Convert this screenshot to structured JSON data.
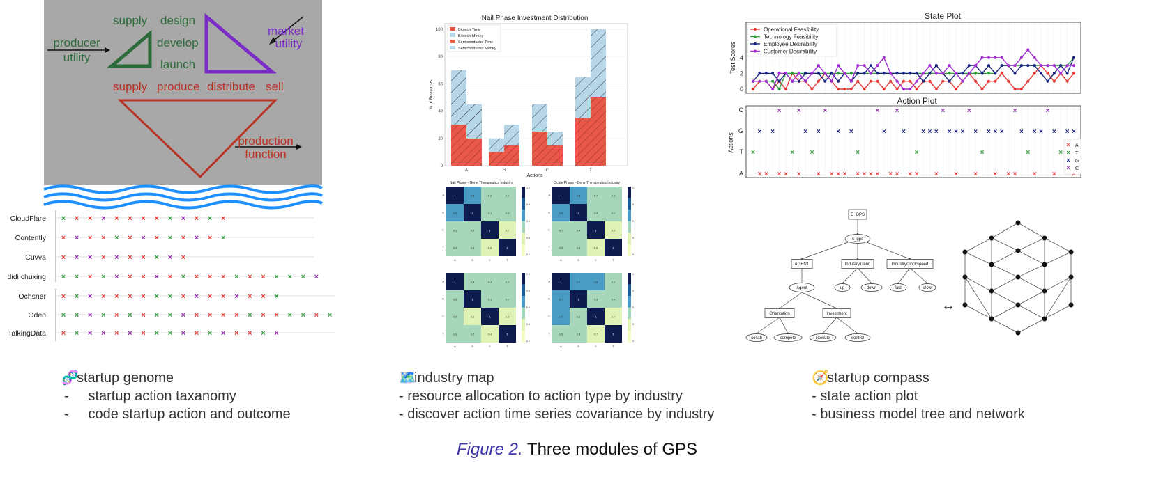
{
  "genome": {
    "top_words": [
      "supply",
      "design",
      "develop",
      "launch",
      "supply",
      "produce",
      "distribute",
      "sell"
    ],
    "producer": [
      "producer",
      "utility"
    ],
    "market": [
      "market",
      "utility"
    ],
    "production": [
      "production",
      "function"
    ],
    "companies": [
      "CloudFlare",
      "Contently",
      "Cuvva",
      "didi chuxing",
      "Ochsner",
      "Odeo",
      "TalkingData"
    ],
    "rows": [
      [
        "g",
        "r",
        "r",
        "p",
        "r",
        "r",
        "r",
        "r",
        "g",
        "p",
        "r",
        "g",
        "r"
      ],
      [
        "r",
        "p",
        "r",
        "r",
        "g",
        "r",
        "p",
        "r",
        "g",
        "r",
        "p",
        "r",
        "g"
      ],
      [
        "r",
        "p",
        "p",
        "r",
        "p",
        "r",
        "r",
        "g",
        "p",
        "r"
      ],
      [
        "g",
        "g",
        "r",
        "g",
        "p",
        "r",
        "r",
        "p",
        "r",
        "g",
        "r",
        "r",
        "r",
        "g",
        "r",
        "r",
        "g",
        "g",
        "g",
        "p"
      ],
      [
        "r",
        "g",
        "p",
        "r",
        "r",
        "r",
        "r",
        "g",
        "g",
        "r",
        "p",
        "r",
        "r",
        "p",
        "r",
        "r",
        "g"
      ],
      [
        "g",
        "g",
        "p",
        "g",
        "r",
        "g",
        "r",
        "g",
        "g",
        "p",
        "r",
        "r",
        "r",
        "r",
        "g",
        "r",
        "r",
        "g",
        "g",
        "r",
        "g"
      ],
      [
        "r",
        "g",
        "p",
        "p",
        "r",
        "p",
        "r",
        "g",
        "g",
        "p",
        "r",
        "g",
        "p",
        "r",
        "r",
        "g",
        "p"
      ]
    ]
  },
  "industry": {
    "bar": {
      "title": "Nail Phase Investment Distribution",
      "xlabel": "Actions",
      "ylabel": "% of Resources",
      "categories": [
        "A",
        "G",
        "C",
        "T"
      ],
      "legend": [
        "Biotech Time",
        "Biotech Money",
        "Semiconductor Time",
        "Semiconductor Money"
      ],
      "ticks": [
        "0",
        "20",
        "40",
        "60",
        "80",
        "100"
      ]
    },
    "heat_titles": [
      "Nail Phase - Gene Therapeutics Industry",
      "Scale Phase - Gene Therapeutics Industry"
    ],
    "heat_labels": [
      "A",
      "G",
      "C",
      "T"
    ]
  },
  "compass": {
    "state": {
      "title": "State Plot",
      "ylabel": "Test Scores",
      "yticks": [
        "0",
        "2",
        "4"
      ],
      "legend": [
        "Operational Feasibility",
        "Technology Feasibility",
        "Employee Desirability",
        "Customer Desirability"
      ]
    },
    "action": {
      "title": "Action Plot",
      "ylabel": "Actions",
      "rows": [
        "C",
        "G",
        "T",
        "A"
      ],
      "legend": [
        "A",
        "T",
        "G",
        "C"
      ]
    },
    "tree": {
      "root": "E_GPS",
      "sub": "c_gps",
      "l2": [
        "AGENT",
        "IndustryTrend",
        "IndustryClockspeed"
      ],
      "agent": "Agent",
      "trend": [
        "up",
        "down"
      ],
      "clock": [
        "fast",
        "slow"
      ],
      "l4": [
        "Orientation",
        "Investment"
      ],
      "leaves": [
        "collab",
        "compete",
        "execute",
        "control"
      ]
    },
    "arrow": "↔"
  },
  "modules": [
    {
      "title": "startup genome",
      "lines": [
        "startup action taxanomy",
        "code startup action and outcome"
      ],
      "bullet": "-"
    },
    {
      "title": "industry map",
      "lines": [
        "resource allocation to action type by industry",
        "discover action time series covariance by industry"
      ],
      "bullet": "-"
    },
    {
      "title": "startup compass",
      "lines": [
        "state action plot",
        "business model tree and network"
      ],
      "bullet": "-"
    }
  ],
  "caption": {
    "fig": "Figure 2.",
    "text": "Three modules of GPS"
  },
  "colors": {
    "red": "#b83326",
    "green": "#2e7d32",
    "purple": "#7b2bc7",
    "navy": "#1a237e",
    "light": "#b7d6e8"
  }
}
